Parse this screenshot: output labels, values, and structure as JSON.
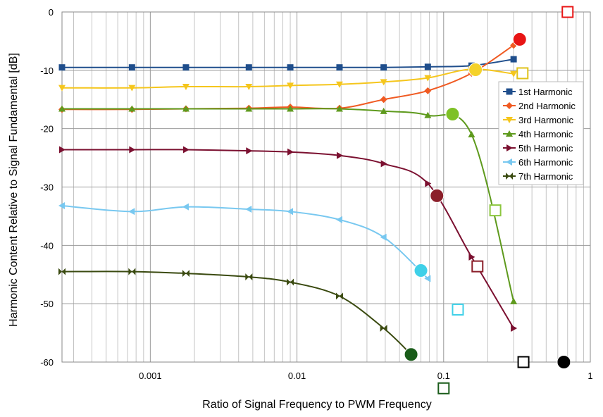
{
  "chart_data": {
    "type": "line",
    "xlabel": "Ratio of Signal Frequency to PWM Frequency",
    "ylabel": "Harmonic Content Relative to Signal Fundamental [dB]",
    "x_scale": "log",
    "xlim": [
      0.00025,
      1
    ],
    "ylim": [
      -60,
      0
    ],
    "x_ticks": [
      {
        "value": 0.001,
        "label": "0.001"
      },
      {
        "value": 0.01,
        "label": "0.01"
      },
      {
        "value": 0.1,
        "label": "0.1"
      },
      {
        "value": 1,
        "label": "1"
      }
    ],
    "y_ticks": [
      {
        "value": 0,
        "label": "0"
      },
      {
        "value": -10,
        "label": "-10"
      },
      {
        "value": -20,
        "label": "-20"
      },
      {
        "value": -30,
        "label": "-30"
      },
      {
        "value": -40,
        "label": "-40"
      },
      {
        "value": -50,
        "label": "-50"
      },
      {
        "value": -60,
        "label": "-60"
      }
    ],
    "grid": {
      "major": true,
      "minor_x": true
    },
    "legend": {
      "position": "right"
    },
    "series": [
      {
        "name": "1st Harmonic",
        "color": "#1f4e8c",
        "marker": "square",
        "x": [
          0.00025,
          0.00075,
          0.00175,
          0.0047,
          0.009,
          0.0195,
          0.039,
          0.078,
          0.155,
          0.3
        ],
        "y": [
          -9.5,
          -9.5,
          -9.5,
          -9.5,
          -9.5,
          -9.5,
          -9.5,
          -9.4,
          -9.2,
          -8.1
        ]
      },
      {
        "name": "2nd Harmonic",
        "color": "#f05a22",
        "marker": "diamond",
        "x": [
          0.00025,
          0.00075,
          0.00175,
          0.0047,
          0.009,
          0.0195,
          0.039,
          0.078,
          0.155,
          0.3
        ],
        "y": [
          -16.7,
          -16.7,
          -16.6,
          -16.5,
          -16.3,
          -16.5,
          -15.0,
          -13.5,
          -10.5,
          -5.7
        ]
      },
      {
        "name": "3rd Harmonic",
        "color": "#f5c61d",
        "marker": "triangle-down",
        "x": [
          0.00025,
          0.00075,
          0.00175,
          0.0047,
          0.009,
          0.0195,
          0.039,
          0.078,
          0.155,
          0.3
        ],
        "y": [
          -13.0,
          -13.0,
          -12.8,
          -12.8,
          -12.6,
          -12.4,
          -12.0,
          -11.3,
          -9.8,
          -10.6
        ]
      },
      {
        "name": "4th Harmonic",
        "color": "#5e9a1d",
        "marker": "triangle-up",
        "x": [
          0.00025,
          0.00075,
          0.00175,
          0.0047,
          0.009,
          0.0195,
          0.039,
          0.078,
          0.155,
          0.3
        ],
        "y": [
          -16.6,
          -16.6,
          -16.6,
          -16.6,
          -16.6,
          -16.6,
          -17.0,
          -17.7,
          -21.0,
          -49.6
        ]
      },
      {
        "name": "5th Harmonic",
        "color": "#7b1030",
        "marker": "triangle-right",
        "x": [
          0.00025,
          0.00075,
          0.00175,
          0.0047,
          0.009,
          0.0195,
          0.039,
          0.078,
          0.155,
          0.3
        ],
        "y": [
          -23.6,
          -23.6,
          -23.6,
          -23.8,
          -24.0,
          -24.6,
          -26.0,
          -29.4,
          -42.0,
          -54.2
        ]
      },
      {
        "name": "6th Harmonic",
        "color": "#78c8f0",
        "marker": "triangle-left",
        "x": [
          0.00025,
          0.00075,
          0.00175,
          0.0047,
          0.009,
          0.0195,
          0.039,
          0.078
        ],
        "y": [
          -33.2,
          -34.2,
          -33.4,
          -33.8,
          -34.2,
          -35.6,
          -38.6,
          -45.7
        ]
      },
      {
        "name": "7th Harmonic",
        "color": "#3a4a10",
        "marker": "bowtie",
        "x": [
          0.00025,
          0.00075,
          0.00175,
          0.0047,
          0.009,
          0.0195,
          0.039,
          0.06
        ],
        "y": [
          -44.5,
          -44.5,
          -44.8,
          -45.4,
          -46.3,
          -48.7,
          -54.2,
          -58.7
        ]
      }
    ],
    "annotations": {
      "circles": [
        {
          "x": 0.33,
          "y": -4.7,
          "color": "#e81515"
        },
        {
          "x": 0.165,
          "y": -9.9,
          "color": "#f5d22a"
        },
        {
          "x": 0.115,
          "y": -17.5,
          "color": "#7ec126"
        },
        {
          "x": 0.09,
          "y": -31.5,
          "color": "#8b1f2a"
        },
        {
          "x": 0.07,
          "y": -44.3,
          "color": "#3fd0e8"
        },
        {
          "x": 0.06,
          "y": -58.7,
          "color": "#1a5c1a"
        },
        {
          "x": 0.66,
          "y": -60.0,
          "color": "#000000"
        }
      ],
      "squares": [
        {
          "x": 0.7,
          "y": 0.0,
          "color": "#e81515"
        },
        {
          "x": 0.345,
          "y": -10.5,
          "color": "#e0c21a"
        },
        {
          "x": 0.225,
          "y": -34.0,
          "color": "#8cc63e"
        },
        {
          "x": 0.17,
          "y": -43.6,
          "color": "#8b1f2a"
        },
        {
          "x": 0.125,
          "y": -51.0,
          "color": "#3fd0e8"
        },
        {
          "x": 0.1,
          "y": -64.5,
          "color": "#1a5c1a"
        },
        {
          "x": 0.35,
          "y": -60.0,
          "color": "#000000"
        }
      ]
    }
  }
}
